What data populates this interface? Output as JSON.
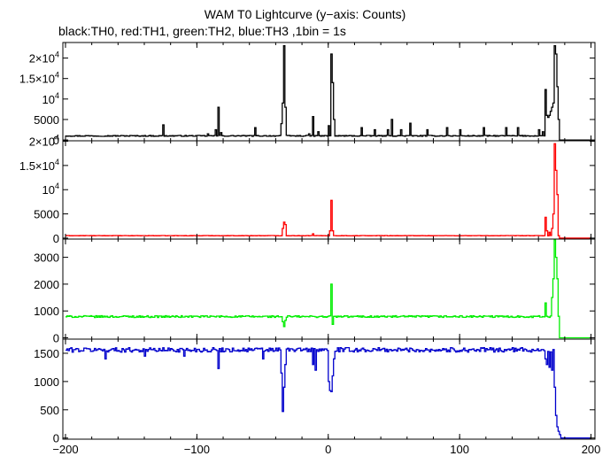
{
  "title": "WAM T0 Lightcurve (y−axis: Counts)",
  "subtitle": "black:TH0, red:TH1, green:TH2, blue:TH3 ,1bin = 1s",
  "chart_data": {
    "type": "line",
    "xlim": [
      -202,
      203
    ],
    "x_ticks": [
      -200,
      -100,
      0,
      100,
      200
    ],
    "x_tick_labels": [
      "−200",
      "−100",
      "0",
      "100",
      "200"
    ],
    "panels": [
      {
        "name": "TH0",
        "color": "#000000",
        "ylim": [
          -200,
          23800
        ],
        "y_ticks": [
          0,
          5000,
          10000,
          15000,
          20000
        ],
        "y_tick_labels": [
          {
            "base": "0",
            "exp": ""
          },
          {
            "base": "5000",
            "exp": ""
          },
          {
            "base": "10",
            "exp": "4"
          },
          {
            "base": "1.5×10",
            "exp": "4"
          },
          {
            "base": "2×10",
            "exp": "4"
          }
        ],
        "baseline": 1000,
        "noise": 120,
        "end_level": 0,
        "features": [
          {
            "x": -126,
            "y": 3700
          },
          {
            "x": -92,
            "y": 1500
          },
          {
            "x": -86,
            "y": 2500
          },
          {
            "x": -84,
            "y": 8000
          },
          {
            "x": -82,
            "y": 1800
          },
          {
            "x": -56,
            "y": 3000
          },
          {
            "x": -36,
            "y": 4000
          },
          {
            "x": -35,
            "y": 9000
          },
          {
            "x": -34,
            "y": 23000
          },
          {
            "x": -33,
            "y": 8000
          },
          {
            "x": -15,
            "y": 1500
          },
          {
            "x": -12,
            "y": 5700
          },
          {
            "x": -8,
            "y": 2000
          },
          {
            "x": 0,
            "y": 3500
          },
          {
            "x": 2,
            "y": 21000
          },
          {
            "x": 3,
            "y": 14000
          },
          {
            "x": 4,
            "y": 5000
          },
          {
            "x": 25,
            "y": 3000
          },
          {
            "x": 35,
            "y": 2500
          },
          {
            "x": 45,
            "y": 2500
          },
          {
            "x": 48,
            "y": 5000
          },
          {
            "x": 55,
            "y": 2500
          },
          {
            "x": 62,
            "y": 4100
          },
          {
            "x": 75,
            "y": 2500
          },
          {
            "x": 90,
            "y": 3000
          },
          {
            "x": 100,
            "y": 2500
          },
          {
            "x": 118,
            "y": 3000
          },
          {
            "x": 135,
            "y": 3000
          },
          {
            "x": 144,
            "y": 3000
          },
          {
            "x": 160,
            "y": 2500
          },
          {
            "x": 163,
            "y": 2000
          },
          {
            "x": 165,
            "y": 12300
          },
          {
            "x": 166,
            "y": 6000
          },
          {
            "x": 167,
            "y": 5500
          },
          {
            "x": 168,
            "y": 6000
          },
          {
            "x": 169,
            "y": 7000
          },
          {
            "x": 170,
            "y": 8000
          },
          {
            "x": 171,
            "y": 9000
          },
          {
            "x": 172,
            "y": 23000
          },
          {
            "x": 173,
            "y": 21000
          },
          {
            "x": 174,
            "y": 13000
          },
          {
            "x": 175,
            "y": 5000
          },
          {
            "x": 176,
            "y": 1000
          }
        ],
        "end_x": 176
      },
      {
        "name": "TH1",
        "color": "#ff0000",
        "ylim": [
          -200,
          20100
        ],
        "y_ticks": [
          0,
          5000,
          10000,
          15000,
          20000
        ],
        "y_tick_labels": [
          {
            "base": "0",
            "exp": ""
          },
          {
            "base": "5000",
            "exp": ""
          },
          {
            "base": "10",
            "exp": "4"
          },
          {
            "base": "1.5×10",
            "exp": "4"
          },
          {
            "base": "2×10",
            "exp": "4"
          }
        ],
        "baseline": 500,
        "noise": 40,
        "end_level": 0,
        "features": [
          {
            "x": -35,
            "y": 2000
          },
          {
            "x": -34,
            "y": 3300
          },
          {
            "x": -33,
            "y": 2800
          },
          {
            "x": -12,
            "y": 900
          },
          {
            "x": 1,
            "y": 1500
          },
          {
            "x": 2,
            "y": 7800
          },
          {
            "x": 3,
            "y": 1500
          },
          {
            "x": 165,
            "y": 4300
          },
          {
            "x": 166,
            "y": 1500
          },
          {
            "x": 168,
            "y": 1200
          },
          {
            "x": 170,
            "y": 2000
          },
          {
            "x": 171,
            "y": 5000
          },
          {
            "x": 172,
            "y": 19500
          },
          {
            "x": 173,
            "y": 14000
          },
          {
            "x": 174,
            "y": 9000
          },
          {
            "x": 175,
            "y": 500
          }
        ],
        "end_x": 176
      },
      {
        "name": "TH2",
        "color": "#00ee00",
        "ylim": [
          -50,
          3680
        ],
        "y_ticks": [
          0,
          1000,
          2000,
          3000
        ],
        "y_tick_labels": [
          {
            "base": "0",
            "exp": ""
          },
          {
            "base": "1000",
            "exp": ""
          },
          {
            "base": "2000",
            "exp": ""
          },
          {
            "base": "3000",
            "exp": ""
          }
        ],
        "baseline": 790,
        "noise": 35,
        "end_level": 0,
        "features": [
          {
            "x": -35,
            "y": 600
          },
          {
            "x": -34,
            "y": 420
          },
          {
            "x": -33,
            "y": 650
          },
          {
            "x": 2,
            "y": 2000
          },
          {
            "x": 3,
            "y": 500
          },
          {
            "x": 165,
            "y": 1300
          },
          {
            "x": 166,
            "y": 800
          },
          {
            "x": 170,
            "y": 1500
          },
          {
            "x": 171,
            "y": 2200
          },
          {
            "x": 172,
            "y": 3650
          },
          {
            "x": 173,
            "y": 3000
          },
          {
            "x": 174,
            "y": 2200
          },
          {
            "x": 175,
            "y": 800
          }
        ],
        "end_x": 176
      },
      {
        "name": "TH3",
        "color": "#0000cc",
        "ylim": [
          -20,
          1750
        ],
        "y_ticks": [
          0,
          500,
          1000,
          1500
        ],
        "y_tick_labels": [
          {
            "base": "0",
            "exp": ""
          },
          {
            "base": "500",
            "exp": ""
          },
          {
            "base": "1000",
            "exp": ""
          },
          {
            "base": "1500",
            "exp": ""
          }
        ],
        "baseline": 1560,
        "noise": 40,
        "end_level": 0,
        "features": [
          {
            "x": -170,
            "y": 1400
          },
          {
            "x": -140,
            "y": 1450
          },
          {
            "x": -110,
            "y": 1450
          },
          {
            "x": -84,
            "y": 1230
          },
          {
            "x": -50,
            "y": 1400
          },
          {
            "x": -36,
            "y": 1150
          },
          {
            "x": -35,
            "y": 470
          },
          {
            "x": -34,
            "y": 900
          },
          {
            "x": -33,
            "y": 1300
          },
          {
            "x": -12,
            "y": 1300
          },
          {
            "x": -10,
            "y": 1200
          },
          {
            "x": 0,
            "y": 1000
          },
          {
            "x": 1,
            "y": 840
          },
          {
            "x": 2,
            "y": 820
          },
          {
            "x": 3,
            "y": 1100
          },
          {
            "x": 4,
            "y": 1400
          },
          {
            "x": 165,
            "y": 1400
          },
          {
            "x": 166,
            "y": 1300
          },
          {
            "x": 168,
            "y": 1250
          },
          {
            "x": 170,
            "y": 1200
          },
          {
            "x": 172,
            "y": 900
          },
          {
            "x": 173,
            "y": 400
          },
          {
            "x": 174,
            "y": 200
          },
          {
            "x": 175,
            "y": 120
          },
          {
            "x": 176,
            "y": 60
          }
        ],
        "end_x": 177
      }
    ]
  }
}
